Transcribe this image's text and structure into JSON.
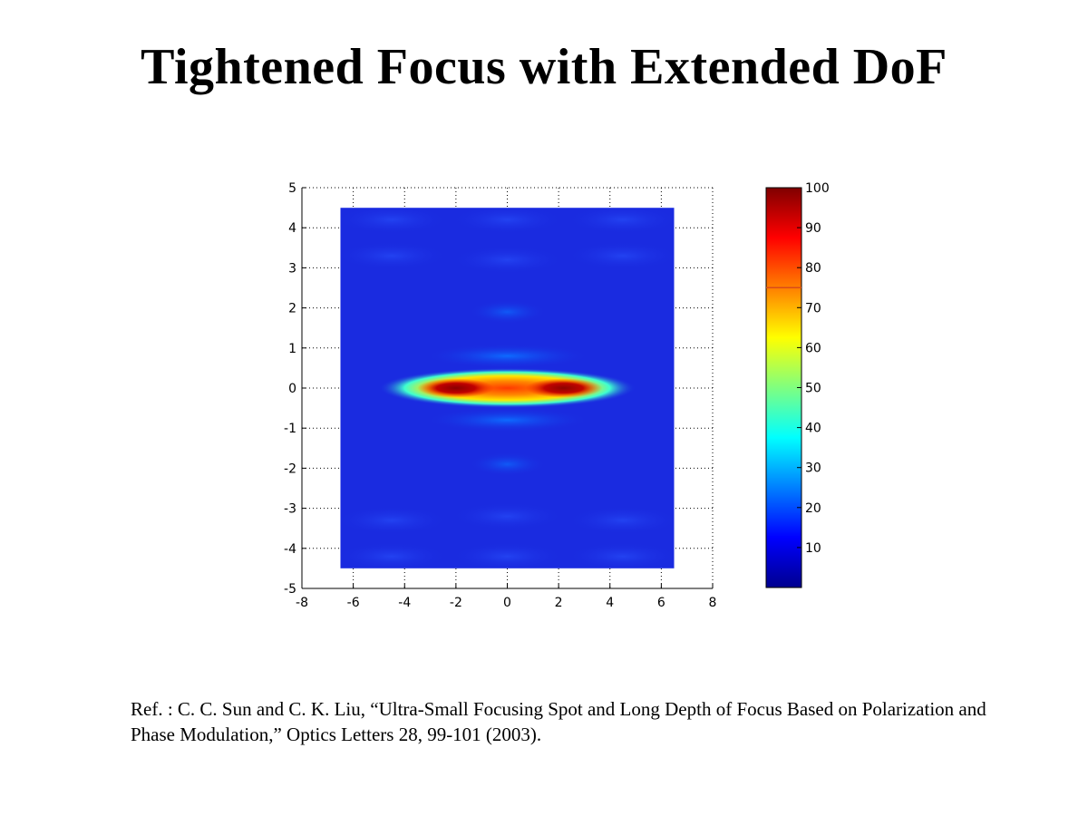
{
  "slide": {
    "title": "Tightened Focus with Extended DoF",
    "reference": "Ref. : C. C. Sun and C. K. Liu, “Ultra-Small Focusing Spot and Long Depth of Focus Based on Polarization and Phase Modulation,” Optics Letters 28, 99-101 (2003)."
  },
  "chart_data": {
    "type": "heatmap",
    "title": "",
    "xlabel": "",
    "ylabel": "",
    "xlim": [
      -8,
      8
    ],
    "ylim": [
      -5,
      5
    ],
    "xticks": [
      "-8",
      "-6",
      "-4",
      "-2",
      "0",
      "2",
      "4",
      "6",
      "8"
    ],
    "yticks": [
      "5",
      "4",
      "3",
      "2",
      "1",
      "0",
      "-1",
      "-2",
      "-3",
      "-4",
      "-5"
    ],
    "data_extent": {
      "x": [
        -6.5,
        6.5
      ],
      "y": [
        -4.5,
        4.5
      ]
    },
    "grid": "dotted",
    "colormap": "jet",
    "colorbar": {
      "range": [
        0,
        100
      ],
      "ticks": [
        "100",
        "90",
        "80",
        "70",
        "60",
        "50",
        "40",
        "30",
        "20",
        "10"
      ],
      "marker_value": 75,
      "marker_color": "#d94b1a"
    },
    "background_color": "#1a2be0",
    "features": [
      {
        "kind": "peak",
        "x": -2.0,
        "y": 0.0,
        "value": 100
      },
      {
        "kind": "peak",
        "x": 2.2,
        "y": 0.0,
        "value": 98
      },
      {
        "kind": "main-lobe",
        "x_range": [
          -5.0,
          5.0
        ],
        "y": 0.0,
        "value_edge": 40
      },
      {
        "kind": "side-lobe",
        "x": 0.0,
        "y": 0.8,
        "value": 22
      },
      {
        "kind": "side-lobe",
        "x": 0.0,
        "y": -0.8,
        "value": 22
      },
      {
        "kind": "side-lobe",
        "x": 0.0,
        "y": 1.9,
        "value": 16
      },
      {
        "kind": "side-lobe",
        "x": 0.0,
        "y": -1.9,
        "value": 16
      }
    ]
  }
}
